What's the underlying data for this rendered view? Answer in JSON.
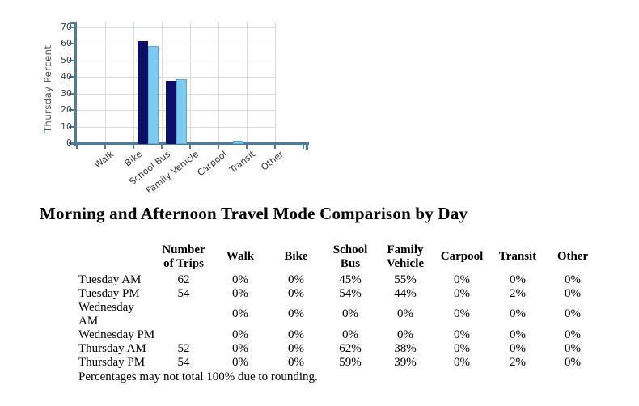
{
  "title": "Morning and Afternoon Travel Mode Comparison by Day",
  "chart_data": {
    "type": "bar",
    "title": "",
    "xlabel": "",
    "ylabel": "Thursday Percent",
    "ylim": [
      0,
      70
    ],
    "ytick_step": 10,
    "grid": true,
    "legend_position": "none",
    "categories": [
      "Walk",
      "Bike",
      "School Bus",
      "Family Vehicle",
      "Carpool",
      "Transit",
      "Other"
    ],
    "series": [
      {
        "name": "Thursday AM",
        "color": "#0c1069",
        "values": [
          0,
          0,
          62,
          38,
          0,
          0,
          0
        ]
      },
      {
        "name": "Thursday PM",
        "color": "#7ccaef",
        "values": [
          0,
          0,
          59,
          39,
          0,
          2,
          0
        ]
      }
    ],
    "colors": {
      "axis": "#4d7d9e",
      "grid": "#d8dde2",
      "tick_text": "#3f3f3f",
      "category_text": "#333333",
      "ylabel_text": "#46555f",
      "bar2_border": "#58aede"
    }
  },
  "table": {
    "columns": [
      "Number\nof Trips",
      "Walk",
      "Bike",
      "School\nBus",
      "Family\nVehicle",
      "Carpool",
      "Transit",
      "Other"
    ],
    "rows": [
      {
        "label": "Tuesday AM",
        "cells": [
          "62",
          "0%",
          "0%",
          "45%",
          "55%",
          "0%",
          "0%",
          "0%"
        ]
      },
      {
        "label": "Tuesday PM",
        "cells": [
          "54",
          "0%",
          "0%",
          "54%",
          "44%",
          "0%",
          "2%",
          "0%"
        ]
      },
      {
        "label": "Wednesday AM",
        "cells": [
          "",
          "0%",
          "0%",
          "0%",
          "0%",
          "0%",
          "0%",
          "0%"
        ]
      },
      {
        "label": "Wednesday PM",
        "cells": [
          "",
          "0%",
          "0%",
          "0%",
          "0%",
          "0%",
          "0%",
          "0%"
        ]
      },
      {
        "label": "Thursday AM",
        "cells": [
          "52",
          "0%",
          "0%",
          "62%",
          "38%",
          "0%",
          "0%",
          "0%"
        ]
      },
      {
        "label": "Thursday PM",
        "cells": [
          "54",
          "0%",
          "0%",
          "59%",
          "39%",
          "0%",
          "2%",
          "0%"
        ]
      }
    ],
    "footnote": "Percentages may not total 100% due to rounding."
  }
}
